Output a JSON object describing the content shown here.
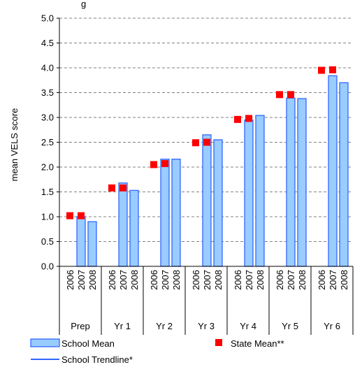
{
  "chart_data": {
    "type": "bar",
    "title_fragment": "g",
    "ylabel": "mean VELS score",
    "ylim": [
      0,
      5
    ],
    "yticks": [
      "0.0",
      "0.5",
      "1.0",
      "1.5",
      "2.0",
      "2.5",
      "3.0",
      "3.5",
      "4.0",
      "4.5",
      "5.0"
    ],
    "grid": "horizontal dashed",
    "groups": [
      "Prep",
      "Yr 1",
      "Yr 2",
      "Yr 3",
      "Yr 4",
      "Yr 5",
      "Yr 6"
    ],
    "years": [
      "2006",
      "2007",
      "2008"
    ],
    "series": [
      {
        "name": "School Mean",
        "type": "bar",
        "color": "#99ccff",
        "values": [
          [
            null,
            1.0,
            0.9
          ],
          [
            null,
            1.68,
            1.53
          ],
          [
            null,
            2.16,
            2.16
          ],
          [
            null,
            2.65,
            2.55
          ],
          [
            null,
            2.95,
            3.04
          ],
          [
            null,
            3.39,
            3.38
          ],
          [
            null,
            3.84,
            3.7
          ]
        ]
      },
      {
        "name": "State Mean**",
        "type": "marker",
        "color": "#ff0000",
        "values": [
          [
            1.02,
            1.02,
            null
          ],
          [
            1.58,
            1.58,
            null
          ],
          [
            2.05,
            2.07,
            null
          ],
          [
            2.49,
            2.5,
            null
          ],
          [
            2.96,
            2.98,
            null
          ],
          [
            3.46,
            3.46,
            null
          ],
          [
            3.95,
            3.96,
            null
          ]
        ]
      },
      {
        "name": "School Trendline*",
        "type": "line",
        "color": "#3366ff",
        "values": []
      }
    ],
    "legend": {
      "placement": "bottom",
      "items": [
        {
          "label": "School Mean",
          "symbol": "bar-swatch"
        },
        {
          "label": "State Mean**",
          "symbol": "red-square"
        },
        {
          "label": "School Trendline*",
          "symbol": "blue-line"
        }
      ]
    }
  }
}
